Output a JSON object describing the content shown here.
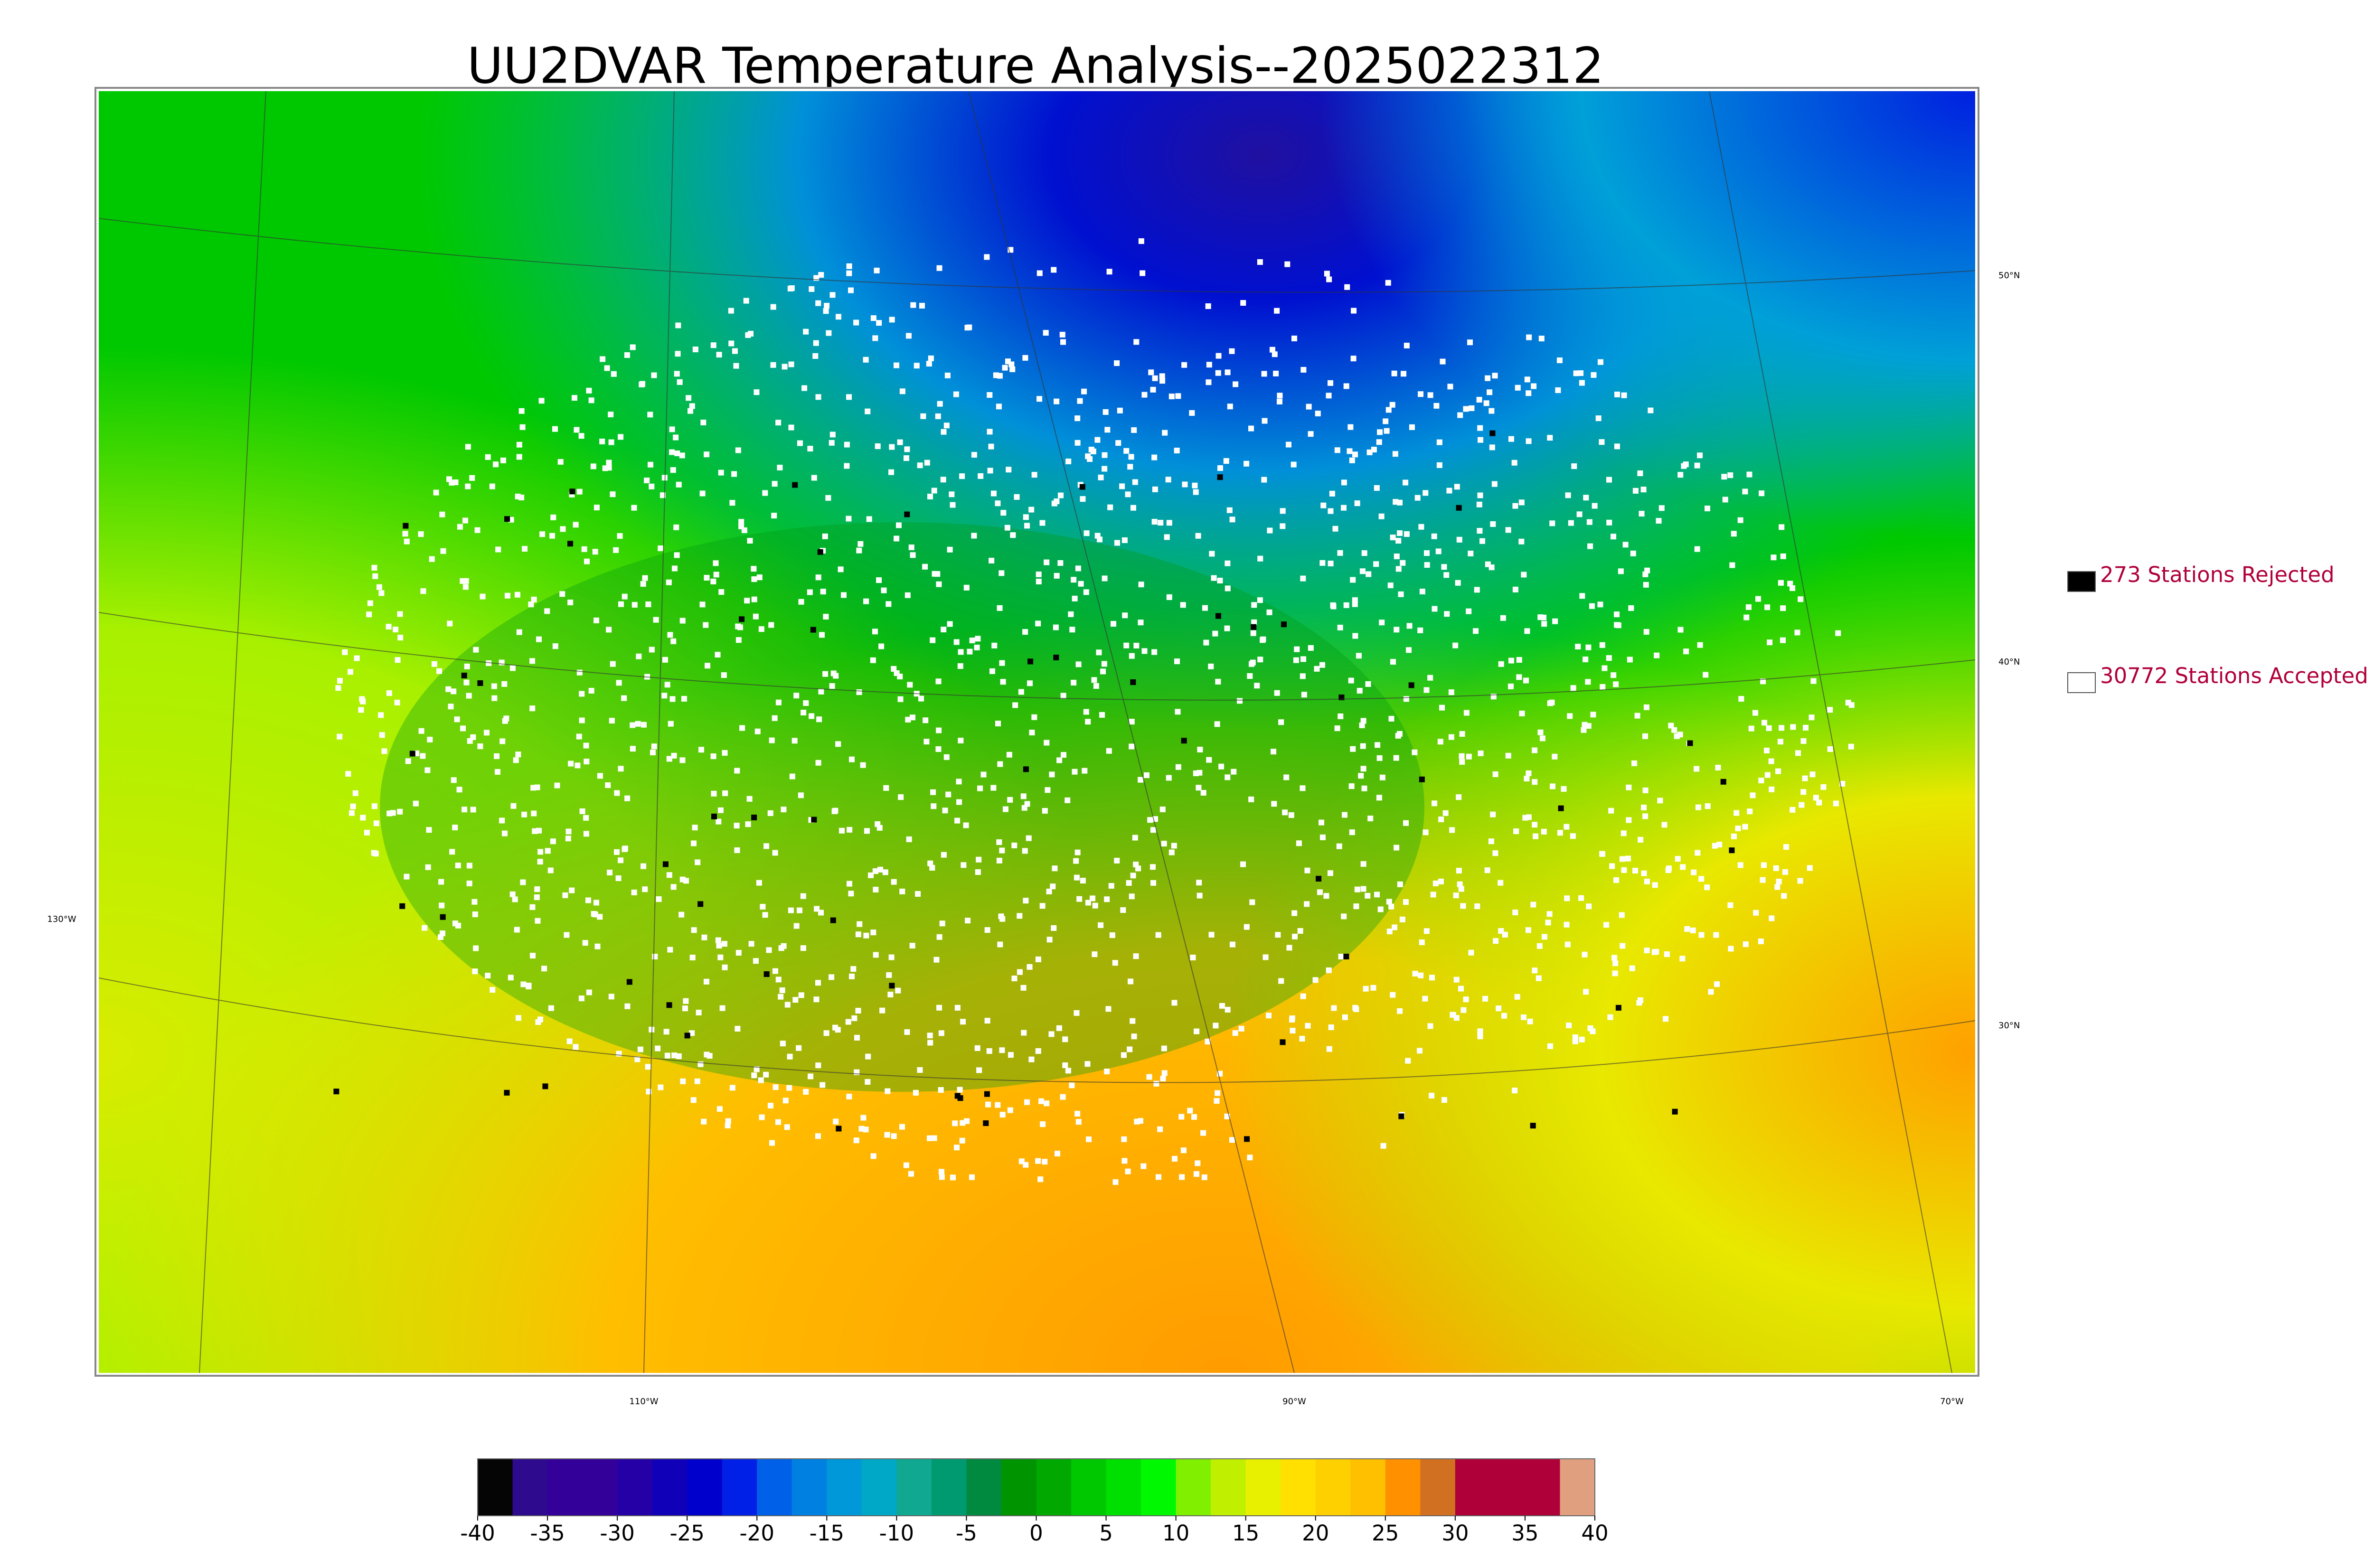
{
  "header": {
    "title": "UU2DVAR Temperature Analysis--2025022312"
  },
  "map": {
    "lat_labels": [
      "50°N",
      "40°N",
      "30°N"
    ],
    "lon_labels": [
      "130°W",
      "110°W",
      "90°W",
      "70°W"
    ]
  },
  "legend": {
    "items": [
      {
        "label": "273 Stations Rejected",
        "color": "#000000"
      },
      {
        "label": "30772 Stations Accepted",
        "color": "#ffffff"
      }
    ]
  },
  "colorbar": {
    "lim": [
      -40,
      40
    ],
    "ticks": [
      -40,
      -35,
      -30,
      -25,
      -20,
      -15,
      -10,
      -5,
      0,
      5,
      10,
      15,
      20,
      25,
      30,
      35,
      40
    ],
    "colors": [
      "#050505",
      "#2e0a8e",
      "#33009a",
      "#33009a",
      "#2400a6",
      "#1000b8",
      "#0000cc",
      "#0020e8",
      "#0060e8",
      "#0080e0",
      "#0098d8",
      "#00a8c8",
      "#10a890",
      "#009a70",
      "#008a40",
      "#009400",
      "#00a800",
      "#00c800",
      "#00e000",
      "#00f800",
      "#80f000",
      "#c0f000",
      "#e8f000",
      "#ffe000",
      "#ffd000",
      "#ffc000",
      "#ff9000",
      "#d07020",
      "#b0003a",
      "#b0003a",
      "#b0003a",
      "#e0a080"
    ]
  }
}
